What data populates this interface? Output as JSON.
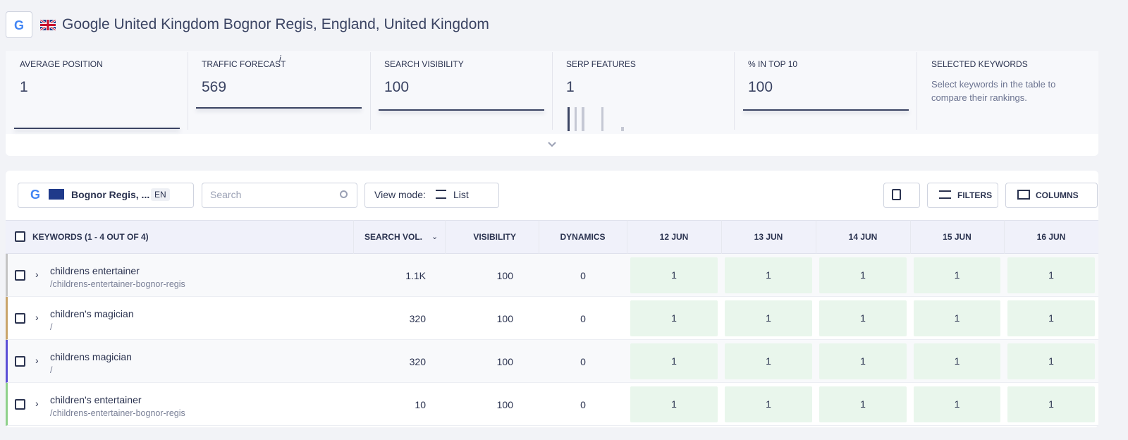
{
  "header": {
    "title": "Google United Kingdom Bognor Regis, England, United Kingdom"
  },
  "metrics": [
    {
      "label": "AVERAGE POSITION",
      "value": "1"
    },
    {
      "label": "TRAFFIC FORECAST",
      "note": "i",
      "value": "569"
    },
    {
      "label": "SEARCH VISIBILITY",
      "value": "100"
    },
    {
      "label": "SERP FEATURES",
      "value": "1"
    },
    {
      "label": "% IN TOP 10",
      "value": "100"
    }
  ],
  "selected": {
    "label": "SELECTED KEYWORDS",
    "text": "Select keywords in the table to compare their rankings."
  },
  "toolbar": {
    "location": "Bognor Regis, ...",
    "lang": "EN",
    "search_placeholder": "Search",
    "view_mode_label": "View mode:",
    "view_mode": "List",
    "filters": "FILTERS",
    "columns": "COLUMNS"
  },
  "table": {
    "columns": [
      "KEYWORDS (1 - 4 OUT OF 4)",
      "SEARCH VOL.",
      "VISIBILITY",
      "DYNAMICS",
      "12 JUN",
      "13 JUN",
      "14 JUN",
      "15 JUN",
      "16 JUN"
    ],
    "rows": [
      {
        "keyword": "childrens entertainer",
        "url": "/childrens-entertainer-bognor-regis",
        "cells": [
          "1.1K",
          "100",
          "0",
          "1",
          "1",
          "1",
          "1",
          "1"
        ]
      },
      {
        "keyword": "children's magician",
        "url": "/",
        "cells": [
          "320",
          "100",
          "0",
          "1",
          "1",
          "1",
          "1",
          "1"
        ]
      },
      {
        "keyword": "childrens magician",
        "url": "/",
        "cells": [
          "320",
          "100",
          "0",
          "1",
          "1",
          "1",
          "1",
          "1"
        ]
      },
      {
        "keyword": "children's entertainer",
        "url": "/childrens-entertainer-bognor-regis",
        "cells": [
          "10",
          "100",
          "0",
          "1",
          "1",
          "1",
          "1",
          "1"
        ]
      }
    ]
  }
}
